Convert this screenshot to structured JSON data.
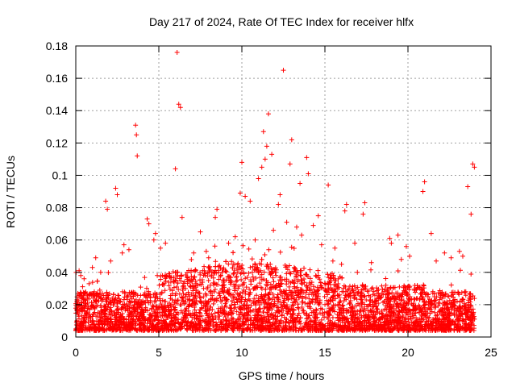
{
  "chart_data": {
    "type": "scatter",
    "title": "Day 217 of 2024, Rate Of TEC Index for receiver hlfx",
    "xlabel": "GPS time / hours",
    "ylabel": "ROTI / TECUs",
    "xlim": [
      0,
      25
    ],
    "ylim": [
      0,
      0.18
    ],
    "xticks": [
      "0",
      "5",
      "10",
      "15",
      "20",
      "25"
    ],
    "yticks": [
      "0",
      "0.02",
      "0.04",
      "0.06",
      "0.08",
      "0.1",
      "0.12",
      "0.14",
      "0.16",
      "0.18"
    ],
    "grid": true,
    "legend": "none",
    "marker": "+",
    "color": "#ff0000",
    "x_range_of_data": [
      0,
      24
    ],
    "series": [
      {
        "x": [
          6.1,
          12.5,
          6.2,
          6.3,
          11.6,
          11.3,
          11.5,
          11.4,
          3.6,
          3.65,
          13.9,
          11.2,
          11.8,
          13.0,
          3.7,
          6.0,
          10.0,
          12.9,
          14.0,
          11.0,
          15.2,
          13.5,
          23.9,
          24.0,
          21.0,
          20.9,
          23.6,
          2.4,
          2.5,
          9.9,
          10.2,
          10.5,
          17.4,
          17.3,
          16.3,
          16.2,
          1.8,
          1.9,
          12.3,
          12.2,
          4.3,
          4.4,
          6.4,
          14.6,
          8.5,
          8.4,
          7.5,
          21.4,
          23.8,
          18.9,
          19.4,
          19.0,
          4.8,
          4.7,
          5.4,
          2.9,
          2.8,
          1.2,
          9.6,
          12.7,
          13.3,
          14.3,
          15.6,
          16.8,
          19.9,
          20.1,
          22.2,
          22.6,
          0.2,
          0.5,
          1.0,
          2.1,
          3.2,
          5.1,
          7.1,
          8.0,
          9.2,
          10.8,
          11.9,
          13.6,
          14.8,
          16.0,
          17.8,
          19.6,
          21.7,
          23.1,
          23.3,
          0.3,
          0.8,
          1.5
        ],
        "y": [
          0.176,
          0.165,
          0.144,
          0.142,
          0.138,
          0.127,
          0.118,
          0.11,
          0.131,
          0.125,
          0.111,
          0.105,
          0.113,
          0.122,
          0.112,
          0.104,
          0.108,
          0.107,
          0.101,
          0.098,
          0.094,
          0.095,
          0.107,
          0.105,
          0.096,
          0.09,
          0.093,
          0.092,
          0.088,
          0.089,
          0.087,
          0.084,
          0.083,
          0.076,
          0.082,
          0.078,
          0.084,
          0.079,
          0.088,
          0.082,
          0.073,
          0.07,
          0.074,
          0.075,
          0.079,
          0.074,
          0.065,
          0.064,
          0.076,
          0.061,
          0.063,
          0.058,
          0.064,
          0.06,
          0.058,
          0.057,
          0.052,
          0.049,
          0.062,
          0.071,
          0.068,
          0.069,
          0.055,
          0.058,
          0.056,
          0.05,
          0.052,
          0.049,
          0.041,
          0.036,
          0.043,
          0.047,
          0.054,
          0.055,
          0.052,
          0.049,
          0.058,
          0.06,
          0.066,
          0.063,
          0.057,
          0.045,
          0.046,
          0.048,
          0.047,
          0.053,
          0.05,
          0.038,
          0.033,
          0.04
        ]
      }
    ]
  }
}
